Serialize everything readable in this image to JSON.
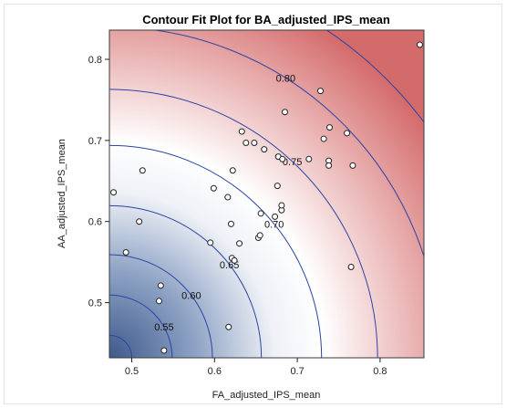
{
  "chart_data": {
    "type": "contour",
    "title": "Contour Fit Plot for BA_adjusted_IPS_mean",
    "xlabel": "FA_adjusted_IPS_mean",
    "ylabel": "AA_adjusted_IPS_mean",
    "xlim": [
      0.473,
      0.853
    ],
    "ylim": [
      0.432,
      0.836
    ],
    "x_ticks": [
      0.5,
      0.6,
      0.7,
      0.8
    ],
    "x_tick_labels": [
      "0.5",
      "0.6",
      "0.7",
      "0.8"
    ],
    "y_ticks": [
      0.5,
      0.6,
      0.7,
      0.8
    ],
    "y_tick_labels": [
      "0.5",
      "0.6",
      "0.7",
      "0.8"
    ],
    "contour_levels": [
      {
        "label": "0.55",
        "x": 0.539,
        "y": 0.47
      },
      {
        "label": "0.60",
        "x": 0.572,
        "y": 0.509
      },
      {
        "label": "0.65",
        "x": 0.618,
        "y": 0.547
      },
      {
        "label": "0.70",
        "x": 0.672,
        "y": 0.597
      },
      {
        "label": "0.75",
        "x": 0.694,
        "y": 0.674
      },
      {
        "label": "0.80",
        "x": 0.686,
        "y": 0.777
      }
    ],
    "colors": {
      "low": "#3e5a8c",
      "mid": "#ffffff",
      "high": "#d46b6b",
      "contour": "#2b44a6"
    },
    "points": [
      {
        "x": 0.478,
        "y": 0.636
      },
      {
        "x": 0.493,
        "y": 0.562
      },
      {
        "x": 0.509,
        "y": 0.6
      },
      {
        "x": 0.513,
        "y": 0.663
      },
      {
        "x": 0.533,
        "y": 0.502
      },
      {
        "x": 0.535,
        "y": 0.521
      },
      {
        "x": 0.539,
        "y": 0.441
      },
      {
        "x": 0.595,
        "y": 0.574
      },
      {
        "x": 0.599,
        "y": 0.641
      },
      {
        "x": 0.616,
        "y": 0.63
      },
      {
        "x": 0.617,
        "y": 0.47
      },
      {
        "x": 0.62,
        "y": 0.597
      },
      {
        "x": 0.621,
        "y": 0.555
      },
      {
        "x": 0.622,
        "y": 0.663
      },
      {
        "x": 0.624,
        "y": 0.552
      },
      {
        "x": 0.63,
        "y": 0.573
      },
      {
        "x": 0.633,
        "y": 0.711
      },
      {
        "x": 0.638,
        "y": 0.697
      },
      {
        "x": 0.648,
        "y": 0.697
      },
      {
        "x": 0.653,
        "y": 0.58
      },
      {
        "x": 0.655,
        "y": 0.583
      },
      {
        "x": 0.656,
        "y": 0.61
      },
      {
        "x": 0.66,
        "y": 0.689
      },
      {
        "x": 0.673,
        "y": 0.606
      },
      {
        "x": 0.676,
        "y": 0.644
      },
      {
        "x": 0.677,
        "y": 0.68
      },
      {
        "x": 0.681,
        "y": 0.614
      },
      {
        "x": 0.681,
        "y": 0.62
      },
      {
        "x": 0.682,
        "y": 0.677
      },
      {
        "x": 0.685,
        "y": 0.735
      },
      {
        "x": 0.714,
        "y": 0.677
      },
      {
        "x": 0.728,
        "y": 0.761
      },
      {
        "x": 0.732,
        "y": 0.702
      },
      {
        "x": 0.738,
        "y": 0.675
      },
      {
        "x": 0.738,
        "y": 0.669
      },
      {
        "x": 0.739,
        "y": 0.716
      },
      {
        "x": 0.76,
        "y": 0.709
      },
      {
        "x": 0.765,
        "y": 0.544
      },
      {
        "x": 0.767,
        "y": 0.669
      },
      {
        "x": 0.848,
        "y": 0.818
      }
    ]
  }
}
